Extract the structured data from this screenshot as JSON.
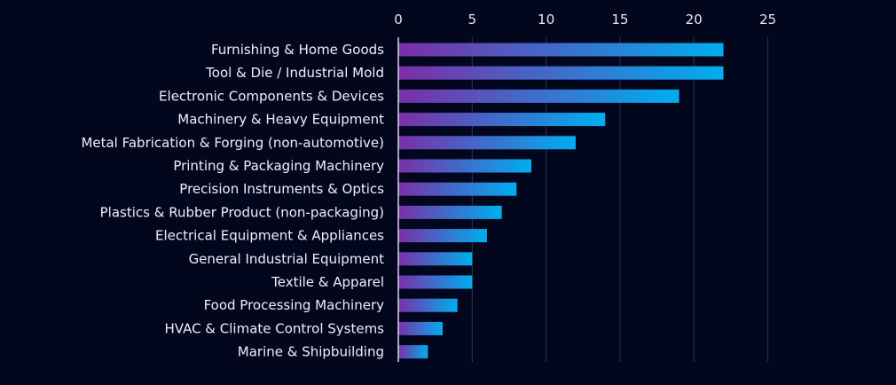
{
  "chart_data": {
    "type": "bar",
    "orientation": "horizontal",
    "categories": [
      "Furnishing & Home Goods",
      "Tool & Die / Industrial Mold",
      "Electronic Components & Devices",
      "Machinery & Heavy Equipment",
      "Metal Fabrication & Forging (non-automotive)",
      "Printing & Packaging Machinery",
      "Precision Instruments & Optics",
      "Plastics & Rubber Product (non-packaging)",
      "Electrical Equipment & Appliances",
      "General Industrial Equipment",
      "Textile & Apparel",
      "Food Processing Machinery",
      "HVAC & Climate Control Systems",
      "Marine & Shipbuilding"
    ],
    "values": [
      22,
      22,
      19,
      14,
      12,
      9,
      8,
      7,
      6,
      5,
      5,
      4,
      3,
      2
    ],
    "title": "",
    "xlabel": "",
    "ylabel": "",
    "xlim": [
      0,
      25
    ],
    "x_ticks": [
      "0",
      "5",
      "10",
      "15",
      "20",
      "25"
    ],
    "x_axis_position": "top",
    "grid": true,
    "legend": "none",
    "colors": {
      "background": "#03071e",
      "bar_start": "#7b2fa8",
      "bar_end": "#00aef0",
      "grid": "#2f3352",
      "text": "#eef0f7"
    }
  }
}
